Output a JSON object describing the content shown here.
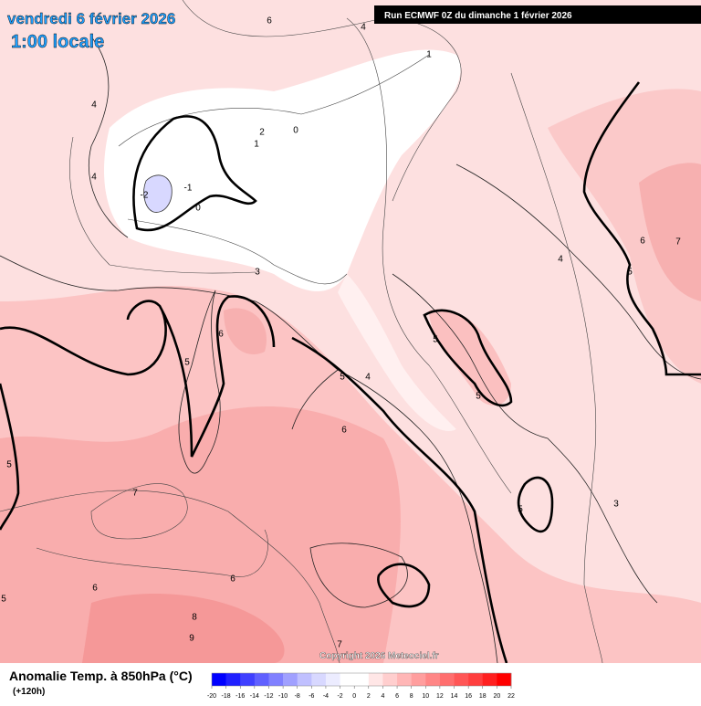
{
  "header": {
    "date": "vendredi 6 février 2026",
    "time": "1:00 locale",
    "run": "Run ECMWF 0Z du dimanche 1 février 2026"
  },
  "footer": {
    "title": "Anomalie Temp. à 850hPa (°C)",
    "lead": "(+120h)",
    "copyright": "Copyright 2026 Meteociel.fr"
  },
  "colorbar": {
    "ticks": [
      -20,
      -18,
      -16,
      -14,
      -12,
      -10,
      -8,
      -6,
      -4,
      -2,
      0,
      2,
      4,
      6,
      8,
      10,
      12,
      14,
      16,
      18,
      20,
      22
    ],
    "colors": [
      "#0000ff",
      "#2020ff",
      "#4040ff",
      "#6060ff",
      "#8080ff",
      "#a0a0ff",
      "#c0c0ff",
      "#d8d8ff",
      "#ececff",
      "#ffffff",
      "#ffffff",
      "#ffe6e6",
      "#ffcece",
      "#ffb6b6",
      "#ff9e9e",
      "#ff8686",
      "#ff6e6e",
      "#ff5656",
      "#ff3e3e",
      "#ff2020",
      "#ff0000"
    ]
  },
  "contour_labels": [
    "6",
    "4",
    "1",
    "4",
    "2",
    "1",
    "0",
    "4",
    "-2",
    "-1",
    "0",
    "6",
    "7",
    "4",
    "3",
    "5",
    "6",
    "5",
    "5",
    "5",
    "4",
    "5",
    "6",
    "5",
    "7",
    "3",
    "5",
    "6",
    "6",
    "5",
    "8",
    "9",
    "7"
  ]
}
